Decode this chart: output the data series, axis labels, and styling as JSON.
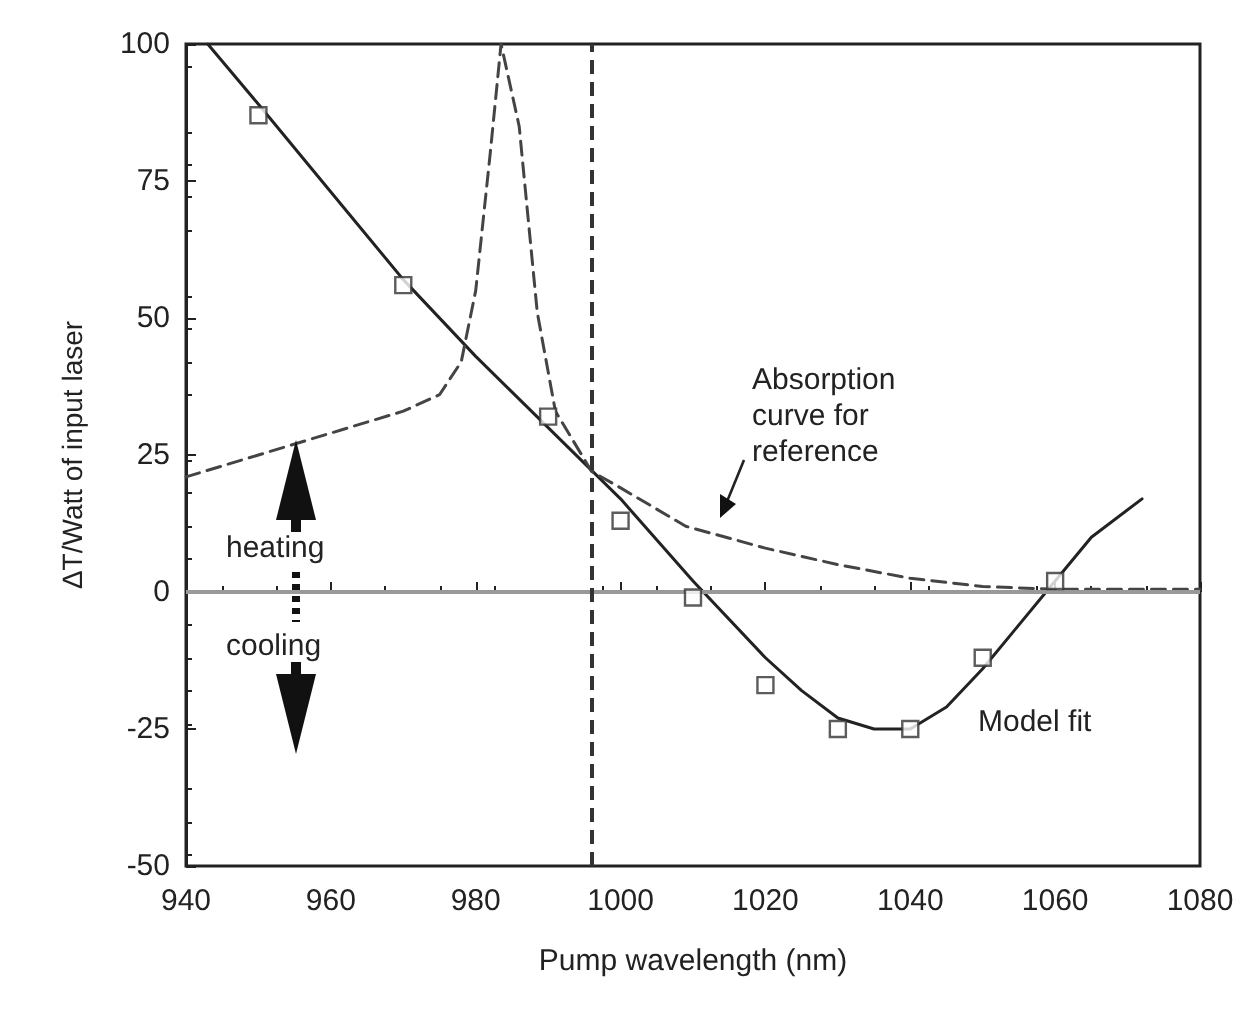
{
  "chart_data": {
    "type": "line",
    "xlabel": "Pump wavelength (nm)",
    "ylabel": "ΔT/Watt of input laser",
    "xlim": [
      940,
      1080
    ],
    "xticks": [
      940,
      960,
      980,
      1000,
      1020,
      1040,
      1060,
      1080
    ],
    "ylim": [
      -50,
      100
    ],
    "yticks": [
      -50,
      -25,
      0,
      25,
      50,
      75,
      100
    ],
    "grid": false,
    "series": [
      {
        "type": "scatter",
        "marker": "square",
        "color": "#333333",
        "x": [
          950,
          970,
          990,
          1000,
          1010,
          1020,
          1030,
          1040,
          1050,
          1060
        ],
        "values": [
          87,
          56,
          32,
          13,
          -1,
          -17,
          -25,
          -25,
          -12,
          2
        ]
      },
      {
        "marker": "none",
        "line_style": "solid",
        "color": "#222222",
        "x": [
          943,
          950,
          960,
          970,
          980,
          990,
          1000,
          1010,
          1020,
          1025,
          1030,
          1035,
          1040,
          1045,
          1050,
          1055,
          1060,
          1065,
          1072
        ],
        "values": [
          100,
          89,
          73,
          57,
          43,
          30,
          17,
          2,
          -12,
          -18,
          -23,
          -25,
          -25,
          -21,
          -14,
          -6,
          2,
          10,
          17
        ]
      },
      {
        "marker": "none",
        "line_style": "dashed",
        "color": "#444444",
        "x": [
          940,
          950,
          960,
          970,
          975,
          978,
          980,
          982,
          983.5,
          986,
          988.5,
          991,
          996,
          1000,
          1009,
          1020,
          1030,
          1040,
          1050,
          1060,
          1070,
          1080
        ],
        "values": [
          21,
          25,
          29,
          33,
          36,
          42,
          55,
          80,
          100,
          85,
          51,
          33,
          22,
          19,
          12,
          8,
          5,
          2.5,
          1,
          0.5,
          0.5,
          0.5
        ]
      }
    ],
    "ref_lines": [
      {
        "axis": "y",
        "value": 0,
        "color": "#999999",
        "line_style": "solid"
      },
      {
        "axis": "x",
        "value": 996,
        "color": "#333333",
        "line_style": "dashed"
      }
    ],
    "annotations": [
      "Absorption\ncurve for\nreference",
      "Model fit",
      "heating",
      "cooling"
    ]
  }
}
